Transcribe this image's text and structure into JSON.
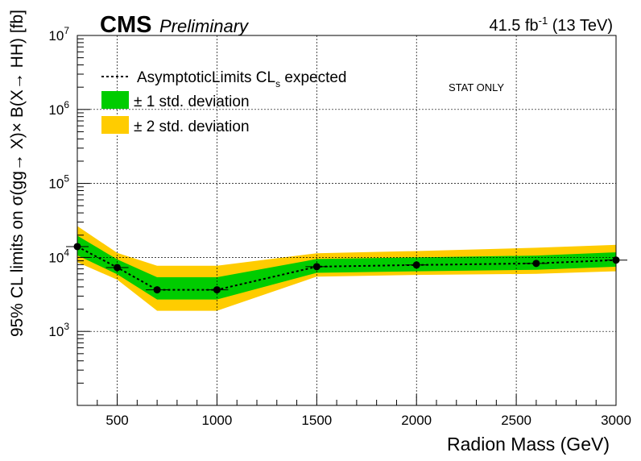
{
  "header": {
    "experiment": "CMS",
    "status": "Preliminary",
    "lumi": "41.5 fb",
    "lumi_exp": "-1",
    "energy": " (13 TeV)"
  },
  "annotation": "STAT ONLY",
  "legend": {
    "expected_main": "AsymptoticLimits CL",
    "expected_sub": "s",
    "expected_tail": " expected",
    "band1": "± 1 std. deviation",
    "band2": "± 2 std. deviation"
  },
  "colors": {
    "band1": "#00cc00",
    "band2": "#ffcc00",
    "line": "#000000"
  },
  "chart_data": {
    "type": "line",
    "title": "",
    "xlabel": "Radion Mass (GeV)",
    "ylabel": "95% CL limits on  σ(gg→ X)× B(X→ HH) [fb]",
    "xlim": [
      300,
      3000
    ],
    "ylim": [
      100,
      10000000
    ],
    "yscale": "log",
    "grid": true,
    "legend_position": "top-left",
    "x_ticks": [
      500,
      1000,
      1500,
      2000,
      2500,
      3000
    ],
    "y_ticks": [
      {
        "base": "10",
        "exp": "3",
        "value": 1000
      },
      {
        "base": "10",
        "exp": "4",
        "value": 10000
      },
      {
        "base": "10",
        "exp": "5",
        "value": 100000
      },
      {
        "base": "10",
        "exp": "6",
        "value": 1000000
      },
      {
        "base": "10",
        "exp": "7",
        "value": 10000000
      }
    ],
    "x": [
      300,
      500,
      700,
      1000,
      1500,
      2000,
      2600,
      3000
    ],
    "series": [
      {
        "name": "AsymptoticLimits CLs expected",
        "values": [
          14000,
          7300,
          3650,
          3650,
          7500,
          7900,
          8300,
          9200
        ]
      },
      {
        "name": "+2 std. deviation",
        "values": [
          26500,
          11500,
          7700,
          7700,
          11400,
          12200,
          13500,
          14800
        ]
      },
      {
        "name": "+1 std. deviation",
        "values": [
          19700,
          9400,
          5400,
          5400,
          9500,
          10000,
          10600,
          11700
        ]
      },
      {
        "name": "-1 std. deviation",
        "values": [
          10700,
          5900,
          2700,
          2700,
          6200,
          6500,
          6800,
          7500
        ]
      },
      {
        "name": "-2 std. deviation",
        "values": [
          8600,
          5000,
          1900,
          1900,
          5500,
          5800,
          6000,
          6500
        ]
      }
    ]
  }
}
